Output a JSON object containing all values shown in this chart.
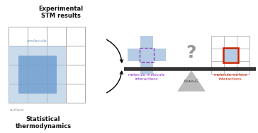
{
  "bg_color": "#ffffff",
  "grid_color": "#aaaaaa",
  "mol_light_blue": "#a8c4e0",
  "mol_dark_blue": "#6699cc",
  "purple_dashed": "#8833bb",
  "red_border": "#cc2200",
  "triangle_color": "#b0b0b0",
  "bar_color": "#333333",
  "text_dark": "#111111",
  "text_purple": "#8833bb",
  "text_red": "#cc2200",
  "text_gray": "#888888",
  "label_molecule": "molecule",
  "label_surface": "surface",
  "label_exp": "Experimental\nSTM results",
  "label_stat": "Statistical\nthermodynamics",
  "label_mm": "molecule-molecule\ninteractions",
  "label_ms": "molecule-surface\ninteractions",
  "label_question": "?"
}
